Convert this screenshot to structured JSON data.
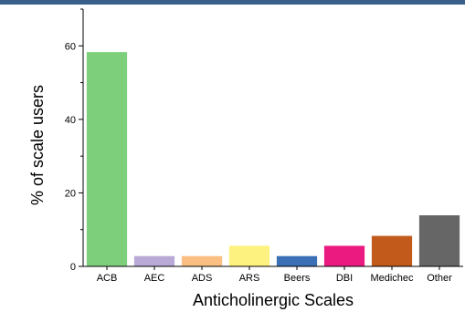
{
  "colors": {
    "top_bar": "#3a5f8a",
    "axis": "#000000"
  },
  "chart_data": {
    "type": "bar",
    "title": "",
    "xlabel": "Anticholinergic Scales",
    "ylabel": "% of scale users",
    "ylim": [
      0,
      70
    ],
    "yticks": [
      0,
      20,
      40,
      60
    ],
    "grid": false,
    "legend": "none",
    "categories": [
      "ACB",
      "AEC",
      "ADS",
      "ARS",
      "Beers",
      "DBI",
      "Medichec",
      "Other"
    ],
    "values": [
      58.3,
      2.8,
      2.8,
      5.6,
      2.8,
      5.6,
      8.3,
      13.9
    ],
    "bar_colors": [
      "#7ecf7b",
      "#b8a9d6",
      "#fbbf84",
      "#fdf27f",
      "#3b6fb6",
      "#eb1a81",
      "#c15a1b",
      "#666666"
    ]
  }
}
